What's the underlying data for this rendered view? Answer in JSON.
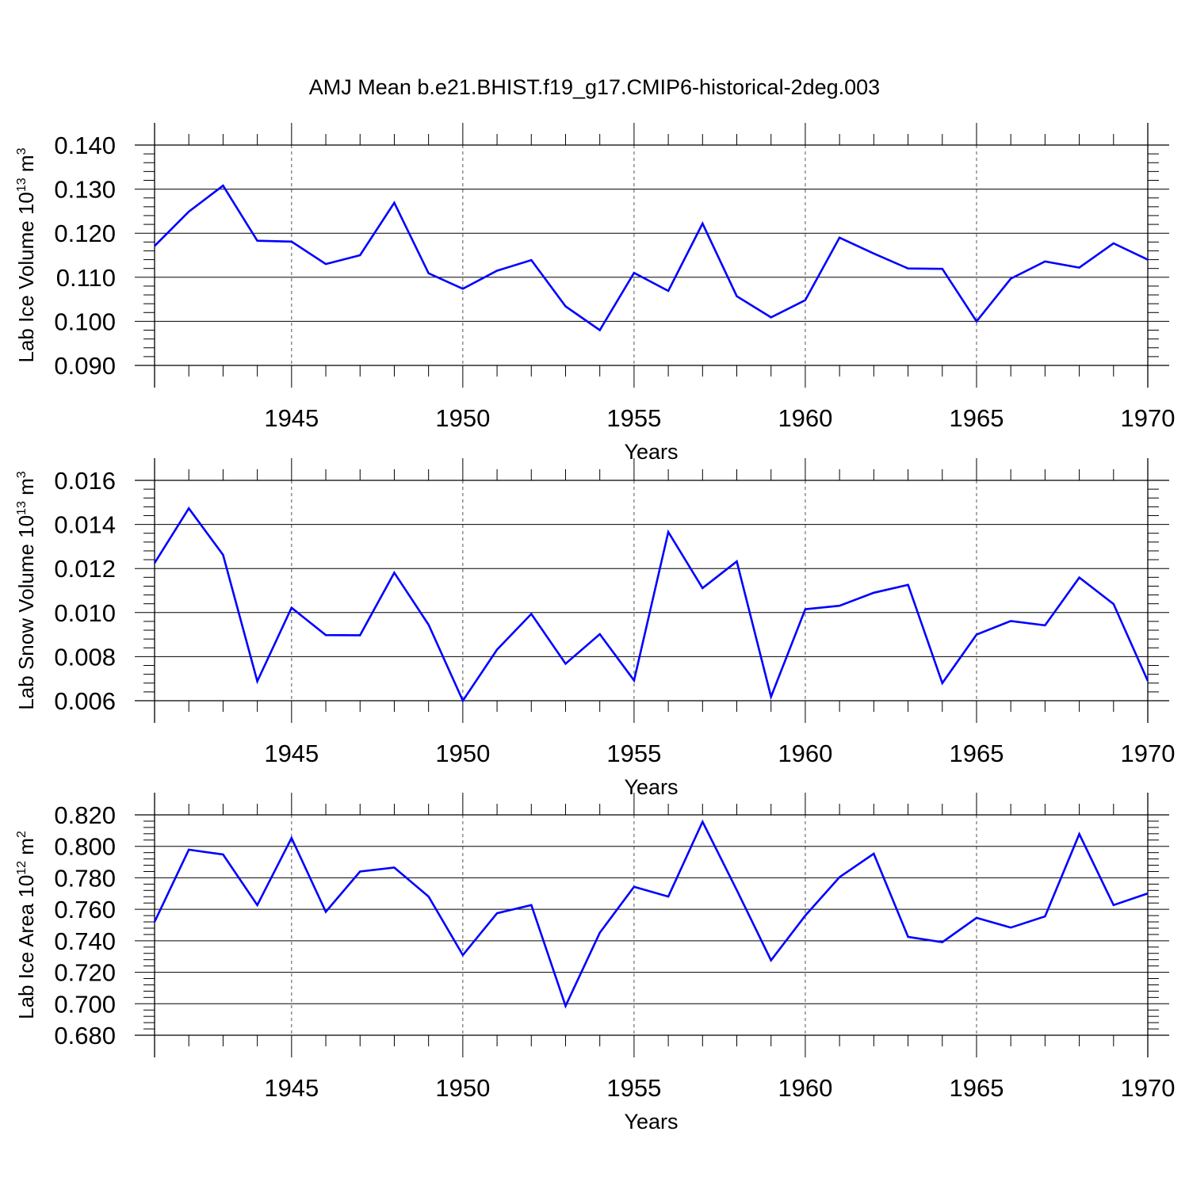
{
  "title": "AMJ Mean b.e21.BHIST.f19_g17.CMIP6-historical-2deg.003",
  "colors": {
    "line": "#0000ff",
    "axis": "#000000",
    "grid": "#555555",
    "background": "#ffffff"
  },
  "chart_data": [
    {
      "type": "line",
      "xlabel": "Years",
      "ylabel": {
        "text": "Lab Ice Volume 10",
        "sup": "13",
        "unit": " m",
        "unit_sup": "3"
      },
      "xlim": [
        1941,
        1970
      ],
      "ylim": [
        0.09,
        0.14
      ],
      "xticks": [
        "1945",
        "1950",
        "1955",
        "1960",
        "1965",
        "1970"
      ],
      "yticks": [
        "0.090",
        "0.100",
        "0.110",
        "0.120",
        "0.130",
        "0.140"
      ],
      "grid": "vertical dashed at major x ticks",
      "x": [
        1941,
        1942,
        1943,
        1944,
        1945,
        1946,
        1947,
        1948,
        1949,
        1950,
        1951,
        1952,
        1953,
        1954,
        1955,
        1956,
        1957,
        1958,
        1959,
        1960,
        1961,
        1962,
        1963,
        1964,
        1965,
        1966,
        1967,
        1968,
        1969,
        1970
      ],
      "values": [
        0.1171,
        0.1249,
        0.1308,
        0.1183,
        0.1181,
        0.113,
        0.115,
        0.1269,
        0.1109,
        0.1074,
        0.1115,
        0.1139,
        0.1034,
        0.098,
        0.111,
        0.1069,
        0.1222,
        0.1057,
        0.1009,
        0.1048,
        0.119,
        0.1154,
        0.112,
        0.1119,
        0.1,
        0.1097,
        0.1136,
        0.1122,
        0.1177,
        0.114
      ]
    },
    {
      "type": "line",
      "xlabel": "Years",
      "ylabel": {
        "text": "Lab Snow Volume 10",
        "sup": "13",
        "unit": " m",
        "unit_sup": "3"
      },
      "xlim": [
        1941,
        1970
      ],
      "ylim": [
        0.006,
        0.016
      ],
      "xticks": [
        "1945",
        "1950",
        "1955",
        "1960",
        "1965",
        "1970"
      ],
      "yticks": [
        "0.006",
        "0.008",
        "0.010",
        "0.012",
        "0.014",
        "0.016"
      ],
      "grid": "vertical dashed at major x ticks",
      "x": [
        1941,
        1942,
        1943,
        1944,
        1945,
        1946,
        1947,
        1948,
        1949,
        1950,
        1951,
        1952,
        1953,
        1954,
        1955,
        1956,
        1957,
        1958,
        1959,
        1960,
        1961,
        1962,
        1963,
        1964,
        1965,
        1966,
        1967,
        1968,
        1969,
        1970
      ],
      "values": [
        0.01225,
        0.01473,
        0.01262,
        0.00688,
        0.01022,
        0.00898,
        0.00897,
        0.01181,
        0.00945,
        0.006,
        0.00832,
        0.00994,
        0.00768,
        0.00902,
        0.00692,
        0.01366,
        0.01111,
        0.01232,
        0.00618,
        0.01015,
        0.01031,
        0.0109,
        0.01126,
        0.0068,
        0.009,
        0.00962,
        0.00942,
        0.01159,
        0.01039,
        0.0069
      ]
    },
    {
      "type": "line",
      "xlabel": "Years",
      "ylabel": {
        "text": "Lab Ice Area 10",
        "sup": "12",
        "unit": " m",
        "unit_sup": "2"
      },
      "xlim": [
        1941,
        1970
      ],
      "ylim": [
        0.68,
        0.82
      ],
      "xticks": [
        "1945",
        "1950",
        "1955",
        "1960",
        "1965",
        "1970"
      ],
      "yticks": [
        "0.680",
        "0.700",
        "0.720",
        "0.740",
        "0.760",
        "0.780",
        "0.800",
        "0.820"
      ],
      "grid": "vertical dashed at major x ticks",
      "x": [
        1941,
        1942,
        1943,
        1944,
        1945,
        1946,
        1947,
        1948,
        1949,
        1950,
        1951,
        1952,
        1953,
        1954,
        1955,
        1956,
        1957,
        1958,
        1959,
        1960,
        1961,
        1962,
        1963,
        1964,
        1965,
        1966,
        1967,
        1968,
        1969,
        1970
      ],
      "values": [
        0.752,
        0.7979,
        0.7948,
        0.7627,
        0.8053,
        0.7584,
        0.784,
        0.7865,
        0.7681,
        0.7309,
        0.7575,
        0.7627,
        0.6986,
        0.7451,
        0.7743,
        0.7681,
        0.8156,
        0.7722,
        0.7276,
        0.756,
        0.7804,
        0.7953,
        0.7425,
        0.7391,
        0.7546,
        0.7484,
        0.7555,
        0.8078,
        0.7627,
        0.7701
      ]
    }
  ]
}
